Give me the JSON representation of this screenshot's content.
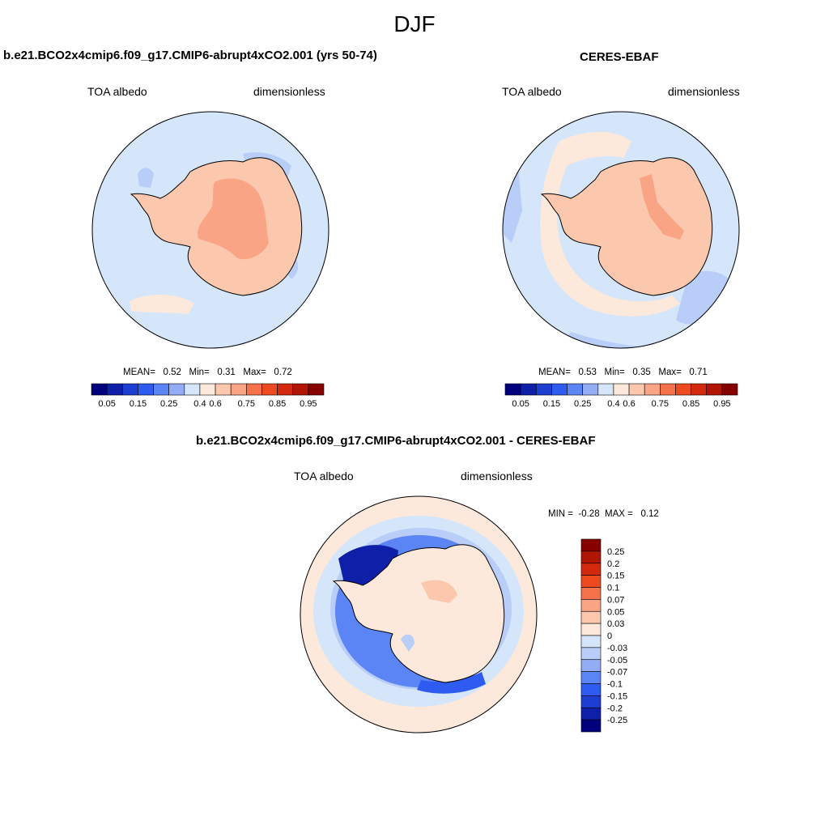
{
  "figure": {
    "title": "DJF"
  },
  "panels": [
    {
      "title": "b.e21.BCO2x4cmip6.f09_g17.CMIP6-abrupt4xCO2.001 (yrs 50-74)",
      "variable": "TOA albedo",
      "units": "dimensionless",
      "stats": {
        "mean_label": "MEAN=",
        "mean": "0.52",
        "min_label": "Min=",
        "min": "0.31",
        "max_label": "Max=",
        "max": "0.72"
      }
    },
    {
      "title": "CERES-EBAF",
      "variable": "TOA albedo",
      "units": "dimensionless",
      "stats": {
        "mean_label": "MEAN=",
        "mean": "0.53",
        "min_label": "Min=",
        "min": "0.35",
        "max_label": "Max=",
        "max": "0.71"
      }
    },
    {
      "title": "b.e21.BCO2x4cmip6.f09_g17.CMIP6-abrupt4xCO2.001 - CERES-EBAF",
      "variable": "TOA albedo",
      "units": "dimensionless",
      "stats": {
        "min_label": "MIN =",
        "min": "-0.28",
        "max_label": "MAX =",
        "max": "0.12"
      }
    }
  ],
  "colorbars": {
    "absolute": {
      "colors": [
        "#00007f",
        "#0f1fa8",
        "#1d3fd1",
        "#2e5cf0",
        "#5b84f5",
        "#93adf5",
        "#d5e6fa",
        "#fde9db",
        "#fbc8ae",
        "#f8a485",
        "#f5724a",
        "#ee4a1f",
        "#d32a0f",
        "#b11605",
        "#860000"
      ],
      "labels": [
        "0.05",
        "0.15",
        "0.25",
        "0.4",
        "0.6",
        "0.75",
        "0.85",
        "0.95"
      ]
    },
    "difference": {
      "colors": [
        "#860000",
        "#b11605",
        "#d32a0f",
        "#ee4a1f",
        "#f5724a",
        "#f8a485",
        "#fbc8ae",
        "#fde9db",
        "#d5e6fa",
        "#b8cdf8",
        "#93adf5",
        "#5b84f5",
        "#2e5cf0",
        "#1d3fd1",
        "#0f1fa8",
        "#00007f"
      ],
      "labels": [
        "0.25",
        "0.2",
        "0.15",
        "0.1",
        "0.07",
        "0.05",
        "0.03",
        "0",
        "-0.03",
        "-0.05",
        "-0.07",
        "-0.1",
        "-0.15",
        "-0.2",
        "-0.25"
      ]
    }
  },
  "map_colors": {
    "ocean_model": "#d5e6fa",
    "ocean_obs": "#d5e6fa",
    "ice_sheet": "#fbc8ae",
    "ice_interior": "#f8a485",
    "light_warm": "#fde9db",
    "blue_mid": "#b8cdf8",
    "blue_strong": "#2e5cf0",
    "blue_deep": "#0f1fa8",
    "coast": "#000000"
  },
  "chart_data": [
    {
      "type": "heatmap",
      "title": "b.e21.BCO2x4cmip6.f09_g17.CMIP6-abrupt4xCO2.001 (yrs 50-74)",
      "projection": "south-polar-stereographic",
      "variable": "TOA albedo",
      "units": "dimensionless",
      "mean": 0.52,
      "min": 0.31,
      "max": 0.72,
      "levels": [
        0.05,
        0.1,
        0.15,
        0.2,
        0.25,
        0.3,
        0.4,
        0.5,
        0.6,
        0.7,
        0.75,
        0.8,
        0.85,
        0.9,
        0.95
      ]
    },
    {
      "type": "heatmap",
      "title": "CERES-EBAF",
      "projection": "south-polar-stereographic",
      "variable": "TOA albedo",
      "units": "dimensionless",
      "mean": 0.53,
      "min": 0.35,
      "max": 0.71,
      "levels": [
        0.05,
        0.1,
        0.15,
        0.2,
        0.25,
        0.3,
        0.4,
        0.5,
        0.6,
        0.7,
        0.75,
        0.8,
        0.85,
        0.9,
        0.95
      ]
    },
    {
      "type": "heatmap",
      "title": "b.e21.BCO2x4cmip6.f09_g17.CMIP6-abrupt4xCO2.001 - CERES-EBAF",
      "projection": "south-polar-stereographic",
      "variable": "TOA albedo",
      "units": "dimensionless",
      "min": -0.28,
      "max": 0.12,
      "levels": [
        -0.25,
        -0.2,
        -0.15,
        -0.1,
        -0.07,
        -0.05,
        -0.03,
        0,
        0.03,
        0.05,
        0.07,
        0.1,
        0.15,
        0.2,
        0.25
      ]
    }
  ]
}
